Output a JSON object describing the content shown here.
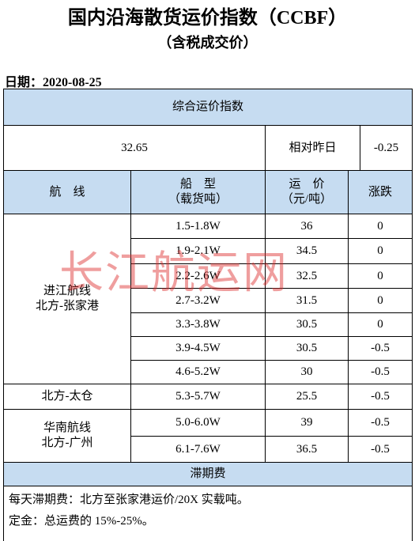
{
  "header": {
    "title": "国内沿海散货运价指数（CCBF）",
    "subtitle": "（含税成交价）",
    "date": "日期：2020-08-25"
  },
  "table": {
    "index_title": "综合运价指数",
    "index_value": 32.65,
    "compare_label": "相对昨日",
    "compare_value": -0.25,
    "columns": [
      [
        "航　线"
      ],
      [
        "船　型",
        "（载货吨）"
      ],
      [
        "运　价",
        "（元/吨）"
      ],
      [
        "涨跌"
      ]
    ],
    "groups": [
      {
        "route": [
          "进江航线",
          "北方-张家港"
        ],
        "rows": [
          [
            "1.5-1.8W",
            36,
            0
          ],
          [
            "1.9-2.1W",
            34.5,
            0
          ],
          [
            "2.2-2.6W",
            32.5,
            0
          ],
          [
            "2.7-3.2W",
            31.5,
            0
          ],
          [
            "3.3-3.8W",
            30.5,
            0
          ],
          [
            "3.9-4.5W",
            30.5,
            -0.5
          ],
          [
            "4.6-5.2W",
            30,
            -0.5
          ]
        ]
      },
      {
        "route": [
          "北方-太仓"
        ],
        "rows": [
          [
            "5.3-5.7W",
            25.5,
            -0.5
          ]
        ]
      },
      {
        "route": [
          "华南航线",
          "北方-广州"
        ],
        "rows": [
          [
            "5.0-6.0W",
            39,
            -0.5
          ],
          [
            "6.1-7.6W",
            36.5,
            -0.5
          ]
        ]
      }
    ]
  },
  "footer": {
    "title": "滞期费",
    "notes": [
      "每天滞期费：北方至张家港运价/20X 实载吨。",
      "定金：总运费的 15%-25%。"
    ]
  },
  "watermark": "长江航运网"
}
